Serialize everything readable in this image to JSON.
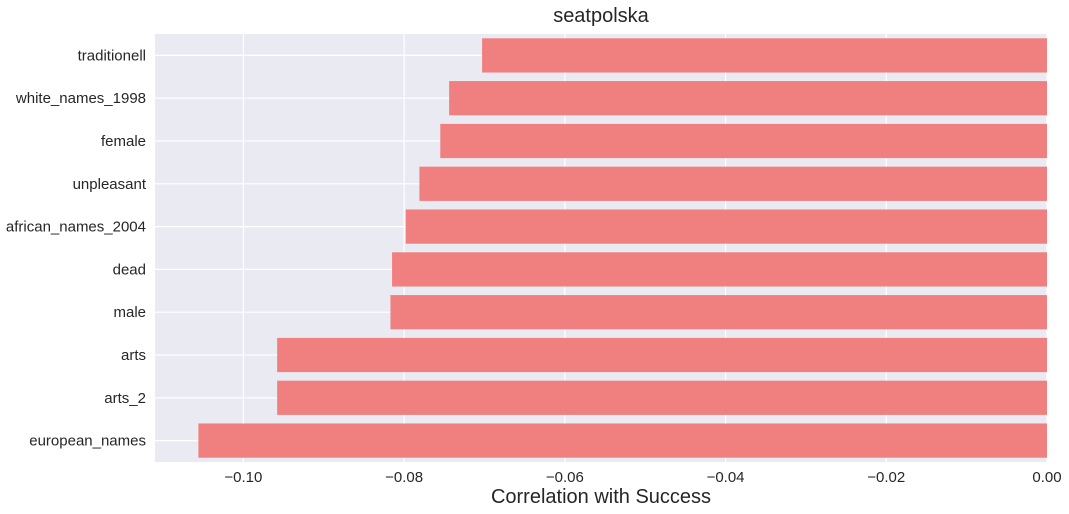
{
  "chart_data": {
    "type": "bar",
    "orientation": "horizontal",
    "title": "seatpolska",
    "xlabel": "Correlation with Success",
    "ylabel": "",
    "categories": [
      "traditionell",
      "white_names_1998",
      "female",
      "unpleasant",
      "african_names_2004",
      "dead",
      "male",
      "arts",
      "arts_2",
      "european_names"
    ],
    "values": [
      -0.0703,
      -0.0744,
      -0.0755,
      -0.0781,
      -0.0798,
      -0.0815,
      -0.0817,
      -0.0958,
      -0.0958,
      -0.1056
    ],
    "xlim": [
      -0.111,
      0.0
    ],
    "xticks": [
      -0.1,
      -0.08,
      -0.06,
      -0.04,
      -0.02,
      0.0
    ],
    "xtick_labels": [
      "−0.10",
      "−0.08",
      "−0.06",
      "−0.04",
      "−0.02",
      "0.00"
    ],
    "grid": true,
    "colors": {
      "bar": "#f08080",
      "background": "#eaeaf2",
      "grid": "#ffffff",
      "text": "#262626"
    }
  }
}
